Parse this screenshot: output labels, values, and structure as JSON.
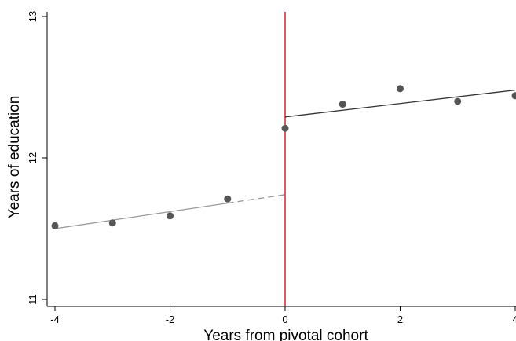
{
  "chart_data": {
    "type": "scatter",
    "title": "",
    "xlabel": "Years from pivotal cohort",
    "ylabel": "Years of education",
    "xlim": [
      -4,
      4
    ],
    "ylim": [
      11,
      13
    ],
    "x_ticks": [
      -4,
      -2,
      0,
      2,
      4
    ],
    "x_tick_labels": [
      "-4",
      "-2",
      "0",
      "2",
      "4"
    ],
    "y_ticks": [
      11,
      12,
      13
    ],
    "y_tick_labels": [
      "11",
      "12",
      "13"
    ],
    "grid": false,
    "points": [
      {
        "x": -4,
        "y": 11.52
      },
      {
        "x": -3,
        "y": 11.54
      },
      {
        "x": -2,
        "y": 11.59
      },
      {
        "x": -1,
        "y": 11.71
      },
      {
        "x": 0,
        "y": 12.21
      },
      {
        "x": 1,
        "y": 12.38
      },
      {
        "x": 2,
        "y": 12.49
      },
      {
        "x": 3,
        "y": 12.4
      },
      {
        "x": 4,
        "y": 12.44
      }
    ],
    "fit_lines": [
      {
        "segment": "pre",
        "x": [
          -4,
          -1
        ],
        "y": [
          11.5,
          11.68
        ],
        "style": "solid",
        "color": "#999999"
      },
      {
        "segment": "pre-extrapolation",
        "x": [
          -1,
          0
        ],
        "y": [
          11.68,
          11.74
        ],
        "style": "dashed",
        "color": "#999999"
      },
      {
        "segment": "post",
        "x": [
          0,
          4
        ],
        "y": [
          12.29,
          12.48
        ],
        "style": "solid",
        "color": "#333333"
      }
    ],
    "cutoff": {
      "x": 0,
      "color": "#d0252d"
    },
    "colors": {
      "points": "#555555",
      "axis": "#000000"
    }
  }
}
